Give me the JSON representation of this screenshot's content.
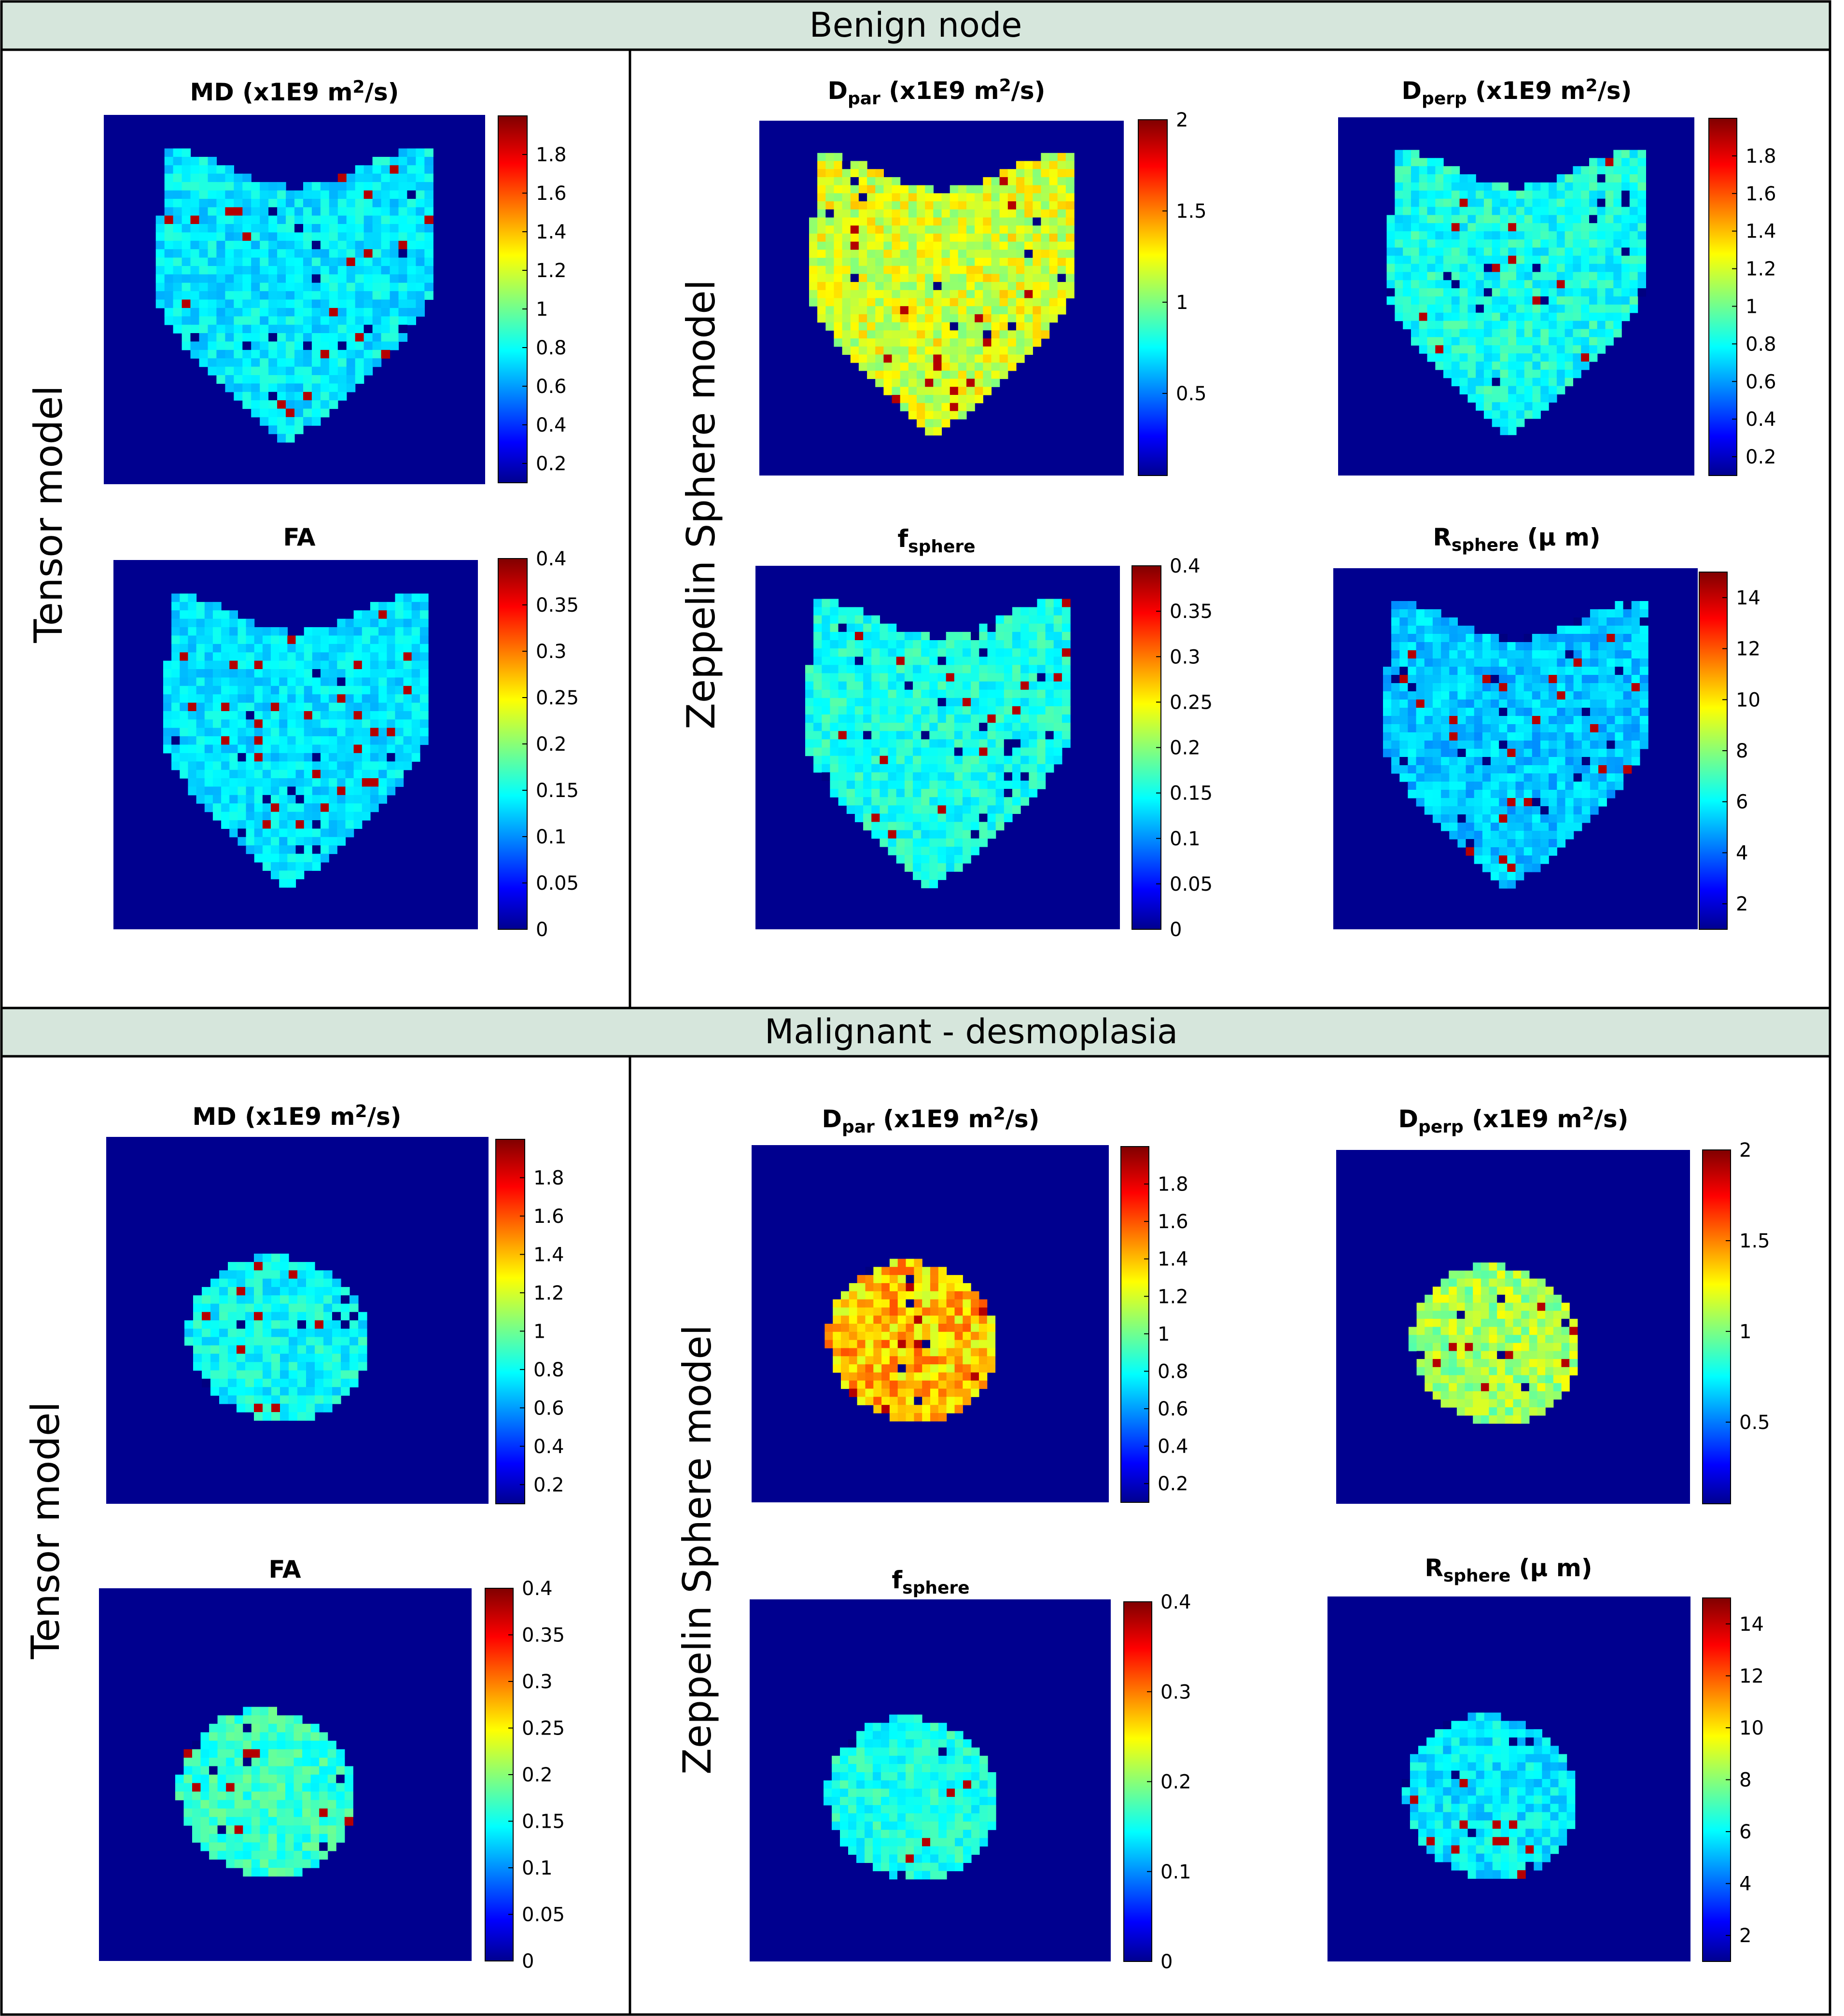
{
  "colors": {
    "header_bg": "#d6e6dc",
    "background_blue": "#00008f",
    "border": "#000000"
  },
  "sections": [
    {
      "header": "Benign node",
      "left_label": "Tensor model",
      "right_label": "Zeppelin Sphere model"
    },
    {
      "header": "Malignant - desmoplasia",
      "left_label": "Tensor model",
      "right_label": "Zeppelin Sphere model"
    }
  ],
  "chart_data": [
    {
      "type": "heatmap",
      "section": "Benign node",
      "model": "Tensor model",
      "title_main": "MD (x1E9 m",
      "title_sup": "2",
      "title_tail": "/s)",
      "colorbar": {
        "range": [
          0.1,
          2.0
        ],
        "ticks": [
          "0.2",
          "0.4",
          "0.6",
          "0.8",
          "1",
          "1.2",
          "1.4",
          "1.6",
          "1.8"
        ],
        "tick_values": [
          0.2,
          0.4,
          0.6,
          0.8,
          1.0,
          1.2,
          1.4,
          1.6,
          1.8
        ]
      },
      "tissue_value": 0.78,
      "shape": "heart"
    },
    {
      "type": "heatmap",
      "section": "Benign node",
      "model": "Tensor model",
      "title_main": "FA",
      "colorbar": {
        "range": [
          0,
          0.4
        ],
        "ticks": [
          "0",
          "0.05",
          "0.1",
          "0.15",
          "0.2",
          "0.25",
          "0.3",
          "0.35",
          "0.4"
        ],
        "tick_values": [
          0,
          0.05,
          0.1,
          0.15,
          0.2,
          0.25,
          0.3,
          0.35,
          0.4
        ]
      },
      "tissue_value": 0.14,
      "shape": "heart"
    },
    {
      "type": "heatmap",
      "section": "Benign node",
      "model": "Zeppelin Sphere model",
      "title_main": "D",
      "title_sub": "par",
      "title_tail": " (x1E9 m",
      "title_sup": "2",
      "title_tail2": "/s)",
      "colorbar": {
        "range": [
          0.05,
          2.0
        ],
        "ticks": [
          "0.5",
          "1",
          "1.5",
          "2"
        ],
        "tick_values": [
          0.5,
          1.0,
          1.5,
          2.0
        ]
      },
      "tissue_value": 1.2,
      "shape": "heart"
    },
    {
      "type": "heatmap",
      "section": "Benign node",
      "model": "Zeppelin Sphere model",
      "title_main": "D",
      "title_sub": "perp",
      "title_tail": " (x1E9 m",
      "title_sup": "2",
      "title_tail2": "/s)",
      "colorbar": {
        "range": [
          0.1,
          2.0
        ],
        "ticks": [
          "0.2",
          "0.4",
          "0.6",
          "0.8",
          "1",
          "1.2",
          "1.4",
          "1.6",
          "1.8"
        ],
        "tick_values": [
          0.2,
          0.4,
          0.6,
          0.8,
          1.0,
          1.2,
          1.4,
          1.6,
          1.8
        ]
      },
      "tissue_value": 0.85,
      "shape": "heart"
    },
    {
      "type": "heatmap",
      "section": "Benign node",
      "model": "Zeppelin Sphere model",
      "title_main": "f",
      "title_sub": "sphere",
      "colorbar": {
        "range": [
          0,
          0.4
        ],
        "ticks": [
          "0",
          "0.05",
          "0.1",
          "0.15",
          "0.2",
          "0.25",
          "0.3",
          "0.35",
          "0.4"
        ],
        "tick_values": [
          0,
          0.05,
          0.1,
          0.15,
          0.2,
          0.25,
          0.3,
          0.35,
          0.4
        ]
      },
      "tissue_value": 0.16,
      "shape": "heart"
    },
    {
      "type": "heatmap",
      "section": "Benign node",
      "model": "Zeppelin Sphere model",
      "title_main": "R",
      "title_sub": "sphere",
      "title_tail": " (μ m)",
      "colorbar": {
        "range": [
          1,
          15
        ],
        "ticks": [
          "2",
          "4",
          "6",
          "8",
          "10",
          "12",
          "14"
        ],
        "tick_values": [
          2,
          4,
          6,
          8,
          10,
          12,
          14
        ]
      },
      "tissue_value": 5.5,
      "shape": "heart"
    },
    {
      "type": "heatmap",
      "section": "Malignant - desmoplasia",
      "model": "Tensor model",
      "title_main": "MD (x1E9 m",
      "title_sup": "2",
      "title_tail": "/s)",
      "colorbar": {
        "range": [
          0.1,
          2.0
        ],
        "ticks": [
          "0.2",
          "0.4",
          "0.6",
          "0.8",
          "1",
          "1.2",
          "1.4",
          "1.6",
          "1.8"
        ],
        "tick_values": [
          0.2,
          0.4,
          0.6,
          0.8,
          1.0,
          1.2,
          1.4,
          1.6,
          1.8
        ]
      },
      "tissue_value": 0.82,
      "shape": "oval"
    },
    {
      "type": "heatmap",
      "section": "Malignant - desmoplasia",
      "model": "Tensor model",
      "title_main": "FA",
      "colorbar": {
        "range": [
          0,
          0.4
        ],
        "ticks": [
          "0",
          "0.05",
          "0.1",
          "0.15",
          "0.2",
          "0.25",
          "0.3",
          "0.35",
          "0.4"
        ],
        "tick_values": [
          0,
          0.05,
          0.1,
          0.15,
          0.2,
          0.25,
          0.3,
          0.35,
          0.4
        ]
      },
      "tissue_value": 0.17,
      "shape": "oval"
    },
    {
      "type": "heatmap",
      "section": "Malignant - desmoplasia",
      "model": "Zeppelin Sphere model",
      "title_main": "D",
      "title_sub": "par",
      "title_tail": " (x1E9 m",
      "title_sup": "2",
      "title_tail2": "/s)",
      "colorbar": {
        "range": [
          0.1,
          2.0
        ],
        "ticks": [
          "0.2",
          "0.4",
          "0.6",
          "0.8",
          "1",
          "1.2",
          "1.4",
          "1.6",
          "1.8"
        ],
        "tick_values": [
          0.2,
          0.4,
          0.6,
          0.8,
          1.0,
          1.2,
          1.4,
          1.6,
          1.8
        ]
      },
      "tissue_value": 1.4,
      "shape": "oval"
    },
    {
      "type": "heatmap",
      "section": "Malignant - desmoplasia",
      "model": "Zeppelin Sphere model",
      "title_main": "D",
      "title_sub": "perp",
      "title_tail": " (x1E9 m",
      "title_sup": "2",
      "title_tail2": "/s)",
      "colorbar": {
        "range": [
          0.05,
          2.0
        ],
        "ticks": [
          "0.5",
          "1",
          "1.5",
          "2"
        ],
        "tick_values": [
          0.5,
          1.0,
          1.5,
          2.0
        ]
      },
      "tissue_value": 1.1,
      "shape": "oval"
    },
    {
      "type": "heatmap",
      "section": "Malignant - desmoplasia",
      "model": "Zeppelin Sphere model",
      "title_main": "f",
      "title_sub": "sphere",
      "colorbar": {
        "range": [
          0,
          0.4
        ],
        "ticks": [
          "0",
          "0.1",
          "0.2",
          "0.3",
          "0.4"
        ],
        "tick_values": [
          0,
          0.1,
          0.2,
          0.3,
          0.4
        ]
      },
      "tissue_value": 0.16,
      "shape": "oval"
    },
    {
      "type": "heatmap",
      "section": "Malignant - desmoplasia",
      "model": "Zeppelin Sphere model",
      "title_main": "R",
      "title_sub": "sphere",
      "title_tail": " (μ m)",
      "colorbar": {
        "range": [
          1,
          15
        ],
        "ticks": [
          "2",
          "4",
          "6",
          "8",
          "10",
          "12",
          "14"
        ],
        "tick_values": [
          2,
          4,
          6,
          8,
          10,
          12,
          14
        ]
      },
      "tissue_value": 6.0,
      "shape": "oval"
    }
  ]
}
